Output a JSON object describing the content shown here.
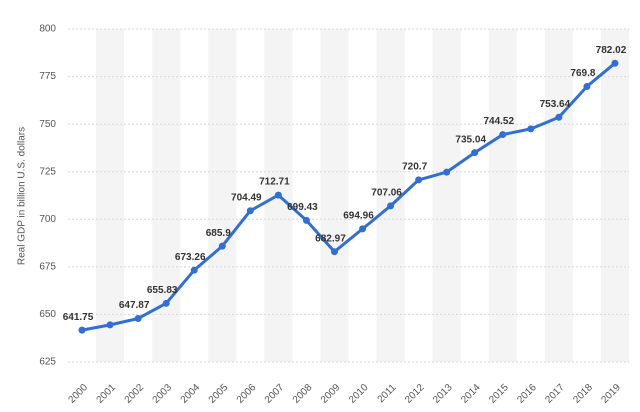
{
  "chart_data": {
    "type": "line",
    "y_label": "Real GDP in billion U.S. dollars",
    "categories": [
      "2000",
      "2001",
      "2002",
      "2003",
      "2004",
      "2005",
      "2006",
      "2007",
      "2008",
      "2009",
      "2010",
      "2011",
      "2012",
      "2013",
      "2014",
      "2015",
      "2016",
      "2017",
      "2018",
      "2019"
    ],
    "values": [
      641.75,
      644.5,
      647.87,
      655.83,
      673.26,
      685.9,
      704.49,
      712.71,
      699.43,
      682.97,
      694.96,
      707.06,
      720.7,
      724.8,
      735.04,
      744.52,
      747.5,
      753.64,
      769.8,
      782.02
    ],
    "value_labels": [
      "641.75",
      null,
      "647.87",
      "655.83",
      "673.26",
      "685.9",
      "704.49",
      "712.71",
      "699.43",
      "682.97",
      "694.96",
      "707.06",
      "720.7",
      null,
      "735.04",
      "744.52",
      null,
      "753.64",
      "769.8",
      "782.02"
    ],
    "color": "#2f6fd6",
    "ylim": [
      625,
      800
    ],
    "yticks": [
      625,
      650,
      675,
      700,
      725,
      750,
      775,
      800
    ],
    "grid": true
  }
}
